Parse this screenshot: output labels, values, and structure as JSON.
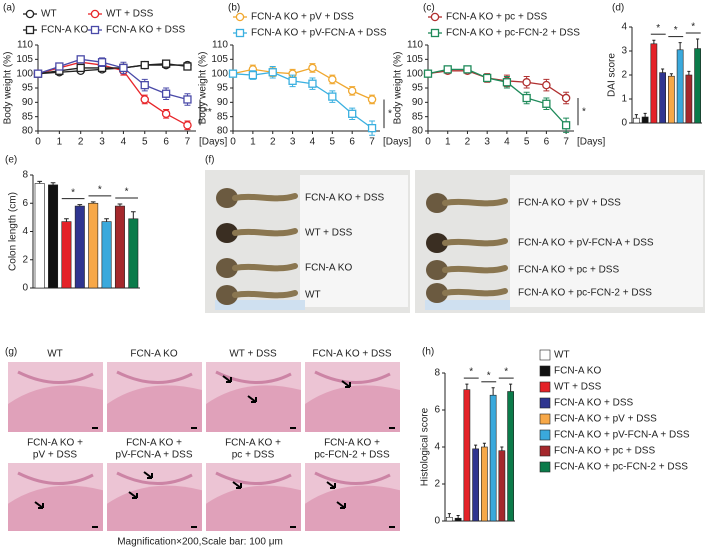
{
  "chart_data": [
    {
      "type": "line",
      "panel": "(a)",
      "xlabel": "[Days]",
      "ylabel": "Body weight (%)",
      "xlim": [
        0,
        7.4
      ],
      "xticks": [
        0,
        1,
        2,
        3,
        4,
        5,
        6,
        7
      ],
      "ylim": [
        80,
        110
      ],
      "yticks": [
        80,
        85,
        90,
        95,
        100,
        105,
        110
      ],
      "annotation": "**",
      "x": [
        0,
        1,
        2,
        3,
        4,
        5,
        6,
        7
      ],
      "series": [
        {
          "name": "WT",
          "color": "#222222",
          "marker": "circle",
          "values": [
            100,
            100.5,
            101,
            101.5,
            102,
            103,
            103,
            103
          ],
          "errors": [
            0.5,
            0.6,
            0.8,
            0.8,
            0.8,
            0.8,
            0.8,
            0.8
          ]
        },
        {
          "name": "WT + DSS",
          "color": "#e8262a",
          "marker": "circle",
          "values": [
            100,
            102,
            104,
            103,
            101,
            91,
            86,
            82
          ],
          "errors": [
            0.5,
            1,
            1,
            1,
            1.5,
            1.5,
            1.5,
            1.5
          ]
        },
        {
          "name": "FCN-A KO",
          "color": "#222222",
          "marker": "square",
          "values": [
            100,
            101,
            102,
            102,
            102,
            103,
            103.5,
            102.5
          ],
          "errors": [
            0.5,
            0.6,
            0.8,
            0.8,
            0.8,
            0.8,
            0.8,
            0.8
          ]
        },
        {
          "name": "FCN-A KO + DSS",
          "color": "#4a4aa8",
          "marker": "square",
          "values": [
            100,
            102.5,
            105,
            104,
            102,
            96,
            93,
            91
          ],
          "errors": [
            0.5,
            1,
            1,
            1.5,
            2,
            2,
            2,
            2
          ]
        }
      ]
    },
    {
      "type": "line",
      "panel": "(b)",
      "xlabel": "[Days]",
      "ylabel": "Body weight (%)",
      "xlim": [
        0,
        7.4
      ],
      "xticks": [
        0,
        1,
        2,
        3,
        4,
        5,
        6,
        7
      ],
      "ylim": [
        80,
        110
      ],
      "yticks": [
        80,
        85,
        90,
        95,
        100,
        105,
        110
      ],
      "annotation": "*",
      "x": [
        0,
        1,
        2,
        3,
        4,
        5,
        6,
        7
      ],
      "series": [
        {
          "name": "FCN-A KO + pV + DSS",
          "color": "#f0a830",
          "marker": "circle",
          "values": [
            100,
            101.5,
            100.5,
            100,
            102,
            98,
            94,
            91
          ],
          "errors": [
            0.5,
            1.5,
            1.5,
            1.5,
            1.5,
            1.5,
            1.5,
            1.5
          ]
        },
        {
          "name": "FCN-A KO + pV-FCN-A + DSS",
          "color": "#3bb0e0",
          "marker": "square",
          "values": [
            100,
            99.5,
            100.5,
            97.5,
            96.5,
            92,
            86,
            81
          ],
          "errors": [
            0.5,
            1.5,
            2,
            2,
            2,
            2,
            2,
            2.5
          ]
        }
      ]
    },
    {
      "type": "line",
      "panel": "(c)",
      "xlabel": "[Days]",
      "ylabel": "Body weight (%)",
      "xlim": [
        0,
        7.4
      ],
      "xticks": [
        0,
        1,
        2,
        3,
        4,
        5,
        6,
        7
      ],
      "ylim": [
        80,
        110
      ],
      "yticks": [
        80,
        85,
        90,
        95,
        100,
        105,
        110
      ],
      "annotation": "*",
      "x": [
        0,
        1,
        2,
        3,
        4,
        5,
        6,
        7
      ],
      "series": [
        {
          "name": "FCN-A KO + pc + DSS",
          "color": "#b03030",
          "marker": "circle",
          "values": [
            100,
            101,
            101,
            98.5,
            97.5,
            97,
            96,
            91.5
          ],
          "errors": [
            0.5,
            1,
            1,
            1.5,
            2,
            2,
            2,
            2
          ]
        },
        {
          "name": "FCN-A KO + pc-FCN-2 + DSS",
          "color": "#1f8a5a",
          "marker": "square",
          "values": [
            100,
            101.5,
            101.5,
            98.5,
            97,
            91.5,
            89.5,
            82
          ],
          "errors": [
            0.5,
            1,
            1,
            1,
            2,
            2,
            2,
            2.5
          ]
        }
      ]
    },
    {
      "type": "bar",
      "panel": "(d)",
      "ylabel": "DAI score",
      "ylim": [
        0,
        4
      ],
      "yticks": [
        0,
        1,
        2,
        3,
        4
      ],
      "annotations": [
        "*",
        "*",
        "*"
      ],
      "categories": [
        null,
        null,
        null,
        null,
        null,
        null,
        null,
        null
      ],
      "colors": [
        "#ffffff",
        "#111111",
        "#e42228",
        "#2f3590",
        "#f7a848",
        "#3aa9dc",
        "#a5282c",
        "#0b7b4a"
      ],
      "values": [
        0.2,
        0.25,
        3.3,
        2.1,
        1.95,
        3.05,
        2.0,
        3.1
      ],
      "errors": [
        0.15,
        0.15,
        0.15,
        0.15,
        0.1,
        0.3,
        0.15,
        0.4
      ]
    },
    {
      "type": "bar",
      "panel": "(e)",
      "ylabel": "Colon length (cm)",
      "ylim": [
        0,
        8
      ],
      "yticks": [
        0,
        2,
        4,
        6,
        8
      ],
      "annotations": [
        "*",
        "*",
        "*"
      ],
      "categories": [
        null,
        null,
        null,
        null,
        null,
        null,
        null,
        null
      ],
      "colors": [
        "#ffffff",
        "#111111",
        "#e42228",
        "#2f3590",
        "#f7a848",
        "#3aa9dc",
        "#a5282c",
        "#0b7b4a"
      ],
      "values": [
        7.4,
        7.3,
        4.7,
        5.8,
        6.0,
        4.7,
        5.8,
        4.9
      ],
      "errors": [
        0.15,
        0.15,
        0.2,
        0.1,
        0.1,
        0.2,
        0.15,
        0.5
      ]
    },
    {
      "type": "bar",
      "panel": "(h)",
      "ylabel": "Histological score",
      "ylim": [
        0,
        8
      ],
      "yticks": [
        0,
        2,
        4,
        6,
        8
      ],
      "annotations": [
        "*",
        "*",
        "*"
      ],
      "legend": true,
      "categories": [
        "WT",
        "FCN-A KO",
        "WT + DSS",
        "FCN-A KO + DSS",
        "FCN-A KO + pV + DSS",
        "FCN-A KO + pV-FCN-A + DSS",
        "FCN-A KO + pc + DSS",
        "FCN-A KO + pc-FCN-2 + DSS"
      ],
      "colors": [
        "#ffffff",
        "#111111",
        "#e42228",
        "#2f3590",
        "#f7a848",
        "#3aa9dc",
        "#a5282c",
        "#0b7b4a"
      ],
      "values": [
        0.2,
        0.15,
        7.1,
        3.9,
        4.0,
        6.8,
        3.8,
        7.0
      ],
      "errors": [
        0.2,
        0.15,
        0.3,
        0.2,
        0.2,
        0.4,
        0.2,
        0.4
      ]
    }
  ],
  "photo_panels": [
    {
      "panel": "(f)",
      "photos": [
        [
          "FCN-A KO + DSS",
          "WT + DSS",
          "FCN-A KO",
          "WT"
        ],
        [
          "FCN-A KO + pV + DSS",
          "FCN-A KO + pV-FCN-A + DSS",
          "FCN-A KO + pc + DSS",
          "FCN-A KO + pc-FCN-2 + DSS"
        ]
      ]
    },
    {
      "panel": "(g)",
      "labels": [
        [
          "WT"
        ],
        [
          "FCN-A KO"
        ],
        [
          "WT + DSS"
        ],
        [
          "FCN-A KO + DSS"
        ],
        [
          "FCN-A KO +",
          "pV + DSS"
        ],
        [
          "FCN-A KO +",
          "pV-FCN-A + DSS"
        ],
        [
          "FCN-A KO +",
          "pc + DSS"
        ],
        [
          "FCN-A KO +",
          "pc-FCN-2 + DSS"
        ]
      ],
      "caption": "Magnification×200,Scale bar: 100 μm"
    }
  ]
}
